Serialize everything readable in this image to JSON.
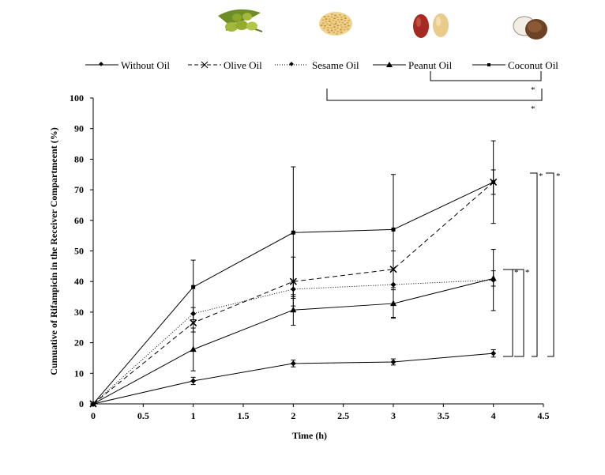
{
  "chart_data": {
    "type": "line",
    "title": "",
    "xlabel": "Time (h)",
    "ylabel": "Cumuative of Rifampicin in the Receiver Compartmeent (%)",
    "x": [
      0,
      1,
      2,
      3,
      4
    ],
    "xticks": [
      "0",
      "0.5",
      "1",
      "1.5",
      "2",
      "2.5",
      "3",
      "3.5",
      "4",
      "4.5"
    ],
    "xtick_values": [
      0,
      0.5,
      1,
      1.5,
      2,
      2.5,
      3,
      3.5,
      4,
      4.5
    ],
    "yticks": [
      "0",
      "10",
      "20",
      "30",
      "40",
      "50",
      "60",
      "70",
      "80",
      "90",
      "100"
    ],
    "ytick_values": [
      0,
      10,
      20,
      30,
      40,
      50,
      60,
      70,
      80,
      90,
      100
    ],
    "xlim": [
      0,
      4.5
    ],
    "ylim": [
      0,
      100
    ],
    "grid": false,
    "legend_position": "top",
    "series": [
      {
        "name": "Without Oil",
        "marker": "diamond",
        "line": "solid",
        "values": [
          0,
          7.5,
          13.2,
          13.7,
          16.5
        ],
        "errors": [
          0,
          1.2,
          1.1,
          1.0,
          1.2
        ]
      },
      {
        "name": "Olive Oil",
        "marker": "x",
        "line": "dashed",
        "values": [
          0,
          26.5,
          40,
          44,
          72.5
        ],
        "errors": [
          0,
          3.0,
          8.0,
          6.0,
          4.0
        ]
      },
      {
        "name": "Sesame Oil",
        "marker": "diamond",
        "line": "dotted",
        "values": [
          0,
          29.5,
          37.5,
          39,
          40.5
        ],
        "errors": [
          0,
          2.0,
          2.5,
          11.0,
          10.0
        ]
      },
      {
        "name": "Peanut Oil",
        "marker": "triangle",
        "line": "solid",
        "values": [
          0,
          17.8,
          30.7,
          32.8,
          41
        ],
        "errors": [
          0,
          7.0,
          5.0,
          4.5,
          2.5
        ]
      },
      {
        "name": "Coconut Oil",
        "marker": "square",
        "line": "solid",
        "values": [
          0,
          38.2,
          56,
          57,
          72.5
        ],
        "errors": [
          0,
          8.8,
          21.5,
          18.0,
          13.5
        ]
      }
    ],
    "annotations": [
      "*",
      "*",
      "*",
      "*",
      "*",
      "*"
    ]
  },
  "icons": [
    "olive-icon",
    "sesame-icon",
    "peanut-icon",
    "coconut-icon"
  ],
  "colors": {
    "line": "#000000",
    "olive": "#7f9a2c",
    "sesame": "#e6c070",
    "peanut_red": "#b3362a",
    "peanut_tan": "#e9c98a",
    "coconut": "#6b4226"
  }
}
